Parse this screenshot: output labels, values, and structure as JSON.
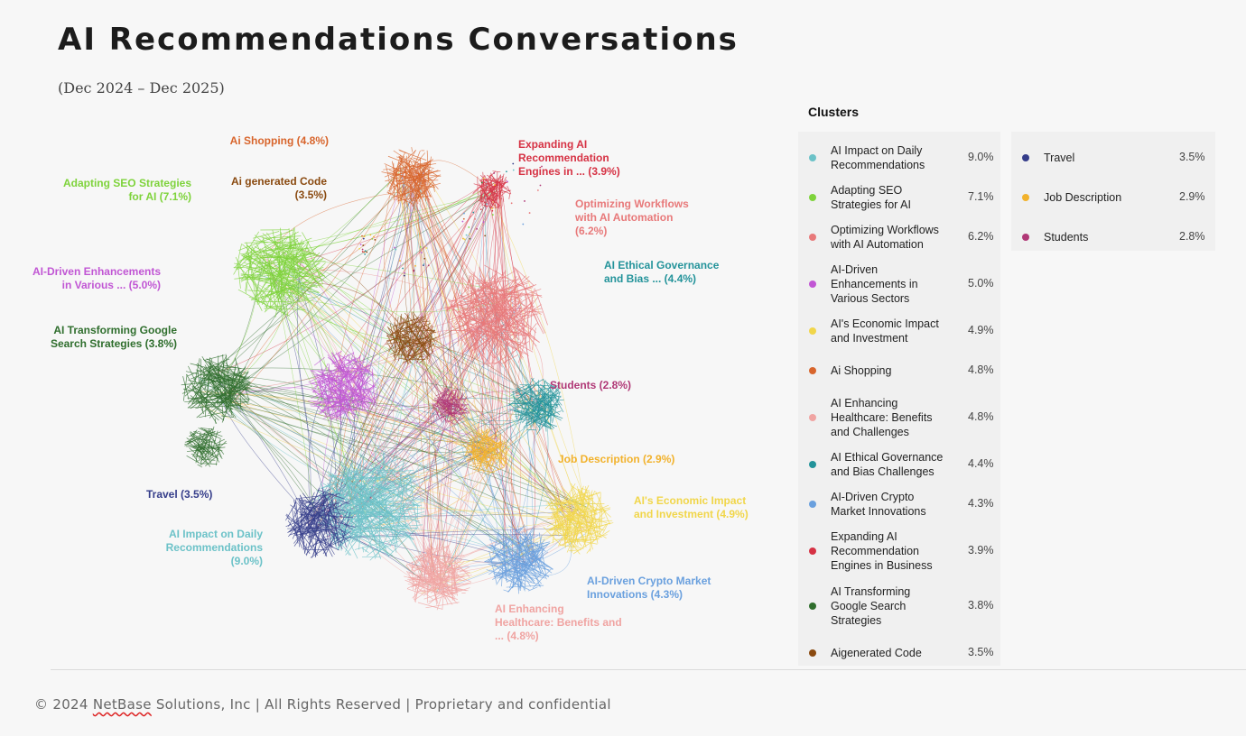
{
  "header": {
    "title": "AI Recommendations Conversations",
    "subtitle": "(Dec 2024 – Dec 2025)"
  },
  "clusters": [
    {
      "name": "AI Impact on Daily Recommendations",
      "pct": "9.0%",
      "color": "#6cc2c8"
    },
    {
      "name": "Adapting SEO Strategies for AI",
      "pct": "7.1%",
      "color": "#7ed33b"
    },
    {
      "name": "Optimizing Workflows with AI Automation",
      "pct": "6.2%",
      "color": "#e8797a"
    },
    {
      "name": "AI-Driven Enhancements in Various Sectors",
      "pct": "5.0%",
      "color": "#c156d4"
    },
    {
      "name": "AI's Economic Impact and Investment",
      "pct": "4.9%",
      "color": "#f1d64a"
    },
    {
      "name": "Ai Shopping",
      "pct": "4.8%",
      "color": "#d8652c"
    },
    {
      "name": "AI Enhancing Healthcare: Benefits and Challenges",
      "pct": "4.8%",
      "color": "#f0a4a2"
    },
    {
      "name": "AI Ethical Governance and Bias Challenges",
      "pct": "4.4%",
      "color": "#23939a"
    },
    {
      "name": "AI-Driven Crypto Market Innovations",
      "pct": "4.3%",
      "color": "#6aa0de"
    },
    {
      "name": "Expanding AI Recommendation Engines in Business",
      "pct": "3.9%",
      "color": "#d63244"
    },
    {
      "name": "AI Transforming Google Search Strategies",
      "pct": "3.8%",
      "color": "#2f6e2d"
    },
    {
      "name": "Aigenerated Code",
      "pct": "3.5%",
      "color": "#8a4a10"
    },
    {
      "name": "Travel",
      "pct": "3.5%",
      "color": "#353d8a"
    },
    {
      "name": "Job Description",
      "pct": "2.9%",
      "color": "#f2b22c"
    },
    {
      "name": "Students",
      "pct": "2.8%",
      "color": "#b03876"
    }
  ],
  "legend": {
    "heading": "Clusters"
  },
  "map_labels": {
    "ai_shopping": "Ai Shopping (4.8%)",
    "expanding": "Expanding AI\nRecommendation\nEngines in ... (3.9%)",
    "adapting_seo": "Adapting SEO Strategies\nfor AI  (7.1%)",
    "ai_code": "Ai generated Code\n(3.5%)",
    "optimizing": "Optimizing Workflows\nwith AI Automation\n(6.2%)",
    "ethical": "AI Ethical Governance\nand Bias ... (4.4%)",
    "enhancements": "AI-Driven Enhancements\nin Various ... (5.0%)",
    "google": "AI Transforming Google\nSearch Strategies (3.8%)",
    "students": "Students (2.8%)",
    "job": "Job Description  (2.9%)",
    "travel": "Travel (3.5%)",
    "economic": "AI's Economic Impact\nand Investment (4.9%)",
    "daily": "AI Impact on Daily\nRecommendations\n(9.0%)",
    "crypto": "AI-Driven Crypto Market\nInnovations  (4.3%)",
    "healthcare": "AI Enhancing\nHealthcare: Benefits and\n... (4.8%)"
  },
  "footer": {
    "prefix": "© 2024 ",
    "brand": "NetBase",
    "suffix": " Solutions, Inc | All Rights Reserved | Proprietary and confidential"
  }
}
